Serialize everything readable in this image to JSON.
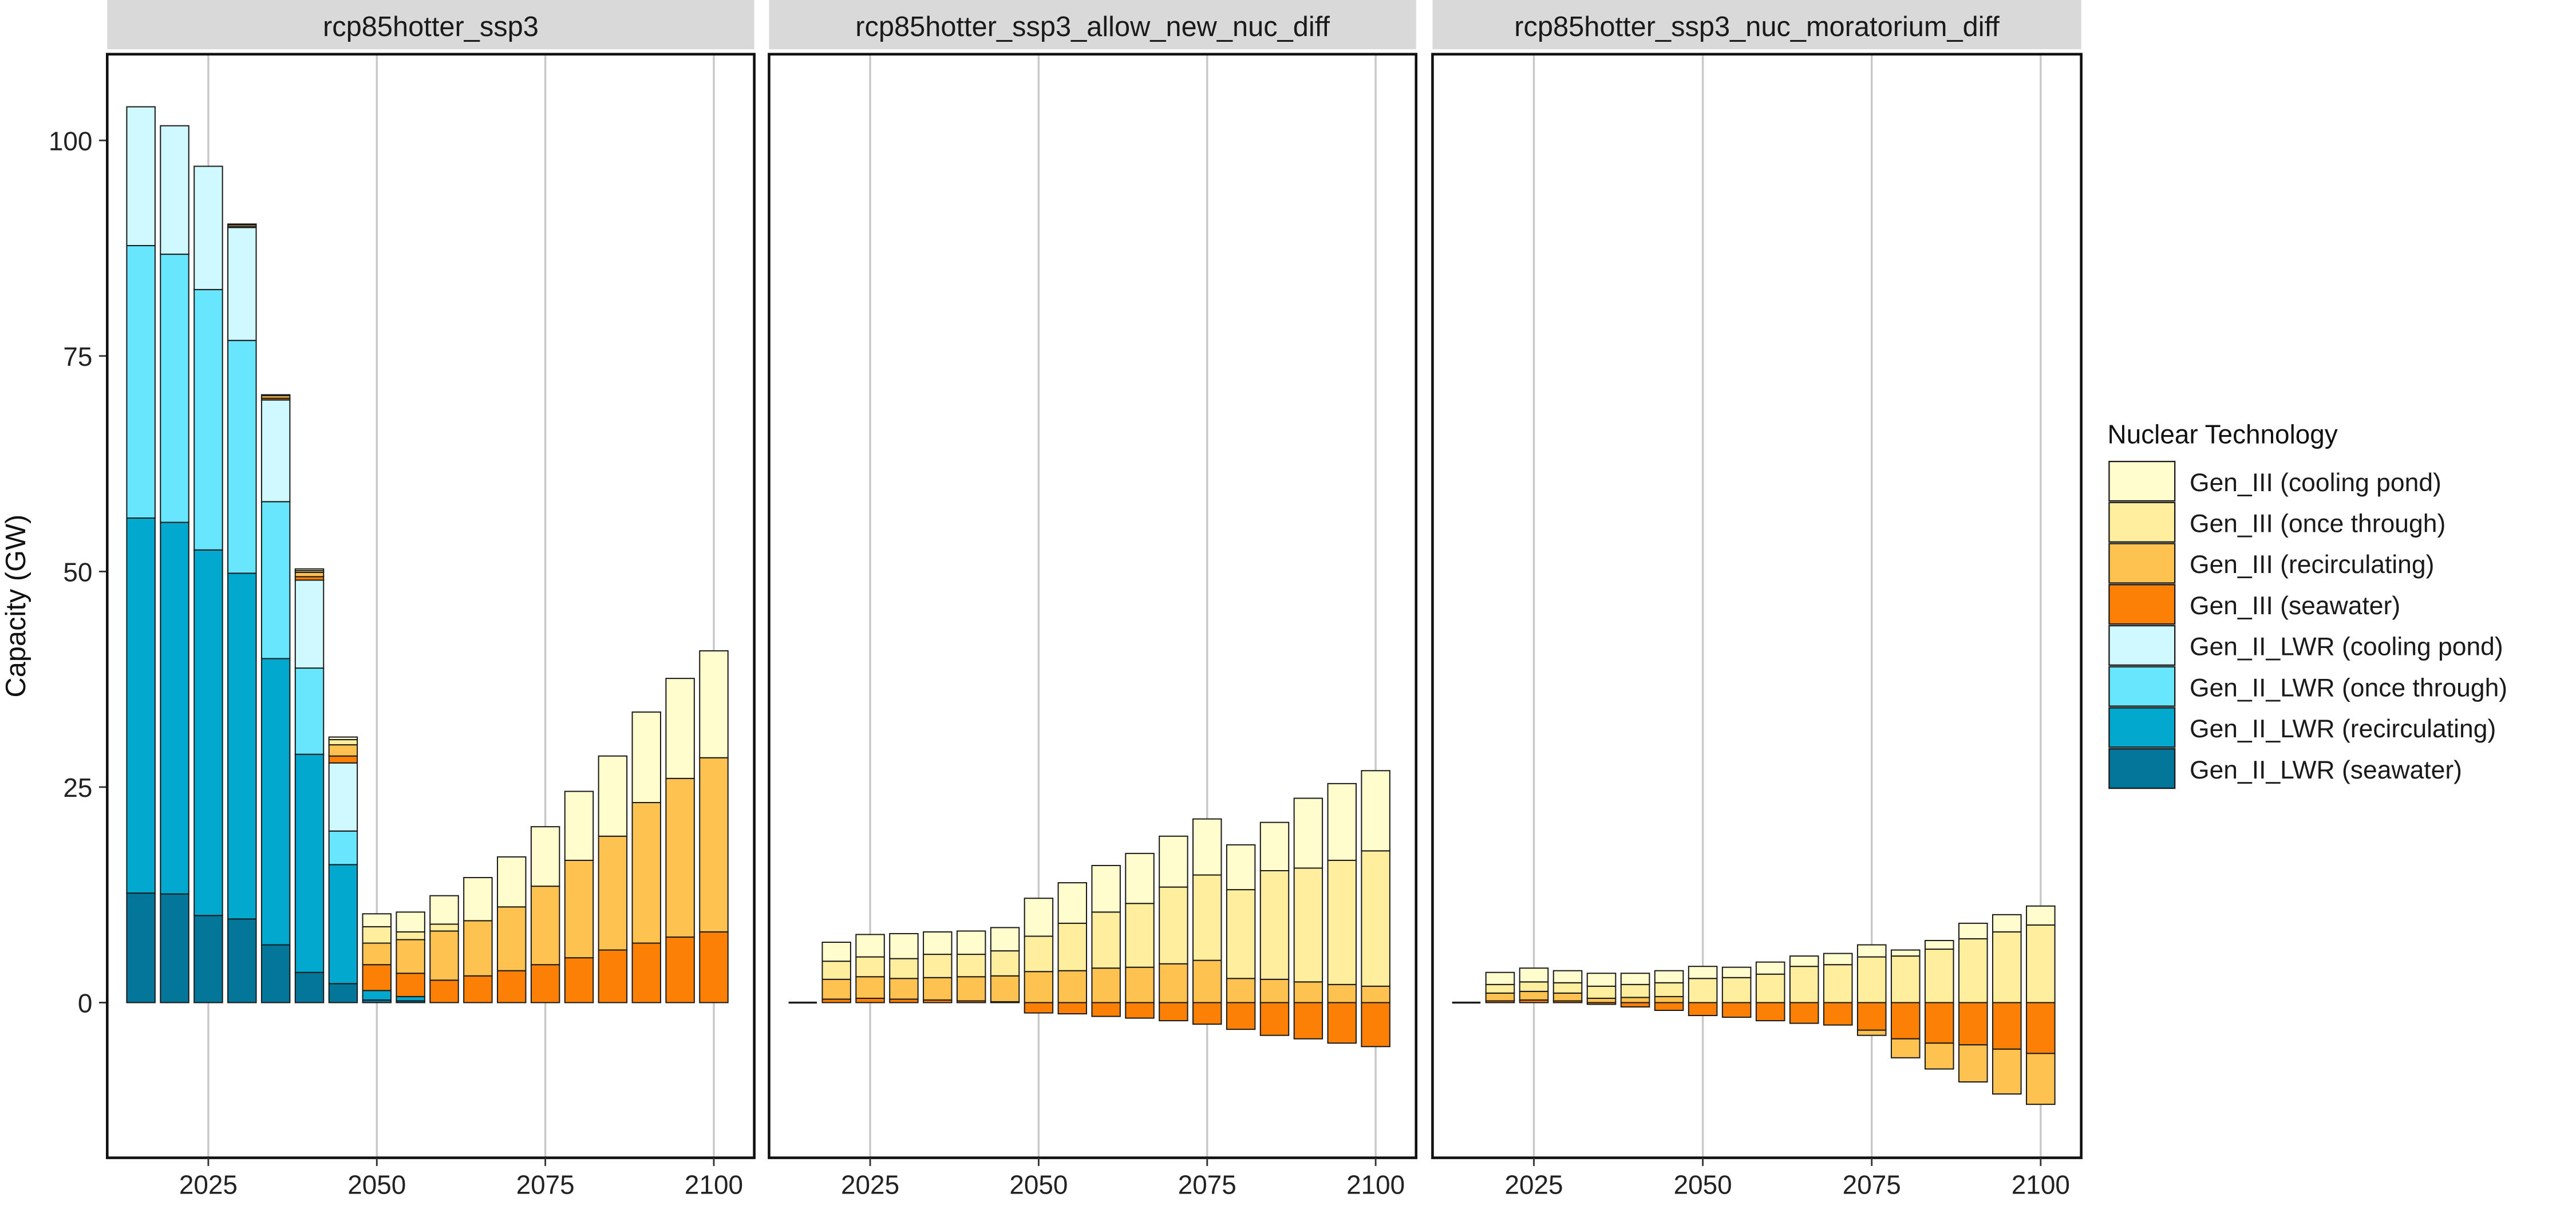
{
  "chart_data": {
    "type": "bar",
    "stacked": true,
    "faceted": true,
    "ylabel": "Capacity (GW)",
    "xlabel": "",
    "x_ticks": [
      2025,
      2050,
      2075,
      2100
    ],
    "y_ticks": [
      0,
      25,
      50,
      75,
      100
    ],
    "xlim": [
      2010,
      2106
    ],
    "ylim": [
      -18,
      110
    ],
    "grid": "vertical-major",
    "legend": {
      "title": "Nuclear Technology",
      "placement": "right",
      "entries": [
        {
          "name": "Gen_III (cooling pond)",
          "color": "#FFFCCD"
        },
        {
          "name": "Gen_III (once through)",
          "color": "#FEEE9D"
        },
        {
          "name": "Gen_III (recirculating)",
          "color": "#FDC24F"
        },
        {
          "name": "Gen_III (seawater)",
          "color": "#FC8005"
        },
        {
          "name": "Gen_II_LWR (cooling pond)",
          "color": "#CFF9FF"
        },
        {
          "name": "Gen_II_LWR (once through)",
          "color": "#68E6FD"
        },
        {
          "name": "Gen_II_LWR (recirculating)",
          "color": "#03A8CF"
        },
        {
          "name": "Gen_II_LWR (seawater)",
          "color": "#047699"
        }
      ]
    },
    "panels": [
      {
        "title": "rcp85hotter_ssp3",
        "years": [
          2015,
          2020,
          2025,
          2030,
          2035,
          2040,
          2045,
          2050,
          2055,
          2060,
          2065,
          2070,
          2075,
          2080,
          2085,
          2090,
          2095,
          2100
        ],
        "series": [
          {
            "name": "Gen_II_LWR (seawater)",
            "values": [
              12.7,
              12.6,
              10.1,
              9.7,
              6.7,
              3.5,
              2.2,
              0.3,
              0.2,
              0,
              0,
              0,
              0,
              0,
              0,
              0,
              0,
              0
            ]
          },
          {
            "name": "Gen_II_LWR (recirculating)",
            "values": [
              43.5,
              43.1,
              42.4,
              40.1,
              33.2,
              25.3,
              13.8,
              1.1,
              0.5,
              0,
              0,
              0,
              0,
              0,
              0,
              0,
              0,
              0
            ]
          },
          {
            "name": "Gen_II_LWR (once through)",
            "values": [
              31.6,
              31.1,
              30.2,
              27.0,
              18.2,
              10.0,
              3.9,
              0,
              0,
              0,
              0,
              0,
              0,
              0,
              0,
              0,
              0,
              0
            ]
          },
          {
            "name": "Gen_II_LWR (cooling pond)",
            "values": [
              16.1,
              14.9,
              14.3,
              13.1,
              11.8,
              10.2,
              7.9,
              0,
              0,
              0,
              0,
              0,
              0,
              0,
              0,
              0,
              0,
              0
            ]
          },
          {
            "name": "Gen_III (seawater)",
            "values": [
              0,
              0,
              0,
              0.1,
              0.2,
              0.4,
              0.8,
              3.0,
              2.7,
              2.6,
              3.1,
              3.7,
              4.4,
              5.2,
              6.1,
              6.9,
              7.6,
              8.2
            ]
          },
          {
            "name": "Gen_III (recirculating)",
            "values": [
              0,
              0,
              0,
              0.2,
              0.3,
              0.5,
              1.3,
              2.5,
              3.9,
              5.7,
              6.4,
              7.4,
              9.1,
              11.3,
              13.2,
              16.3,
              18.4,
              20.2
            ]
          },
          {
            "name": "Gen_III (once through)",
            "values": [
              0,
              0,
              0,
              0,
              0,
              0.2,
              0.6,
              1.9,
              0.9,
              0.8,
              0,
              0,
              0,
              0,
              0,
              0,
              0,
              0
            ]
          },
          {
            "name": "Gen_III (cooling pond)",
            "values": [
              0,
              0,
              0,
              0.1,
              0.1,
              0.2,
              0.3,
              1.5,
              2.3,
              3.3,
              5.0,
              5.8,
              6.9,
              8.0,
              9.3,
              10.5,
              11.6,
              12.4
            ]
          }
        ]
      },
      {
        "title": "rcp85hotter_ssp3_allow_new_nuc_diff",
        "years": [
          2015,
          2020,
          2025,
          2030,
          2035,
          2040,
          2045,
          2050,
          2055,
          2060,
          2065,
          2070,
          2075,
          2080,
          2085,
          2090,
          2095,
          2100
        ],
        "series": [
          {
            "name": "Gen_II_LWR (seawater)",
            "values": [
              0,
              0,
              0,
              0,
              0,
              0,
              0,
              0,
              0,
              0,
              0,
              0,
              0,
              0,
              0,
              0,
              0,
              0
            ]
          },
          {
            "name": "Gen_III (seawater)",
            "values": [
              0,
              0.4,
              0.5,
              0.4,
              0.3,
              0.2,
              0.1,
              -1.2,
              -1.3,
              -1.6,
              -1.8,
              -2.1,
              -2.5,
              -3.1,
              -3.8,
              -4.2,
              -4.7,
              -5.1
            ]
          },
          {
            "name": "Gen_III (recirculating)",
            "values": [
              0,
              2.3,
              2.5,
              2.4,
              2.6,
              2.8,
              3.0,
              3.6,
              3.7,
              4.0,
              4.1,
              4.5,
              4.9,
              2.8,
              2.7,
              2.4,
              2.1,
              1.9
            ]
          },
          {
            "name": "Gen_III (once through)",
            "values": [
              0,
              2.1,
              2.3,
              2.3,
              2.7,
              2.6,
              2.9,
              4.1,
              5.5,
              6.5,
              7.4,
              8.9,
              9.9,
              10.3,
              12.6,
              13.2,
              14.4,
              15.7
            ]
          },
          {
            "name": "Gen_III (cooling pond)",
            "values": [
              0,
              2.2,
              2.6,
              2.9,
              2.6,
              2.7,
              2.7,
              4.4,
              4.7,
              5.4,
              5.8,
              5.9,
              6.5,
              5.2,
              5.6,
              8.1,
              8.9,
              9.3
            ]
          }
        ]
      },
      {
        "title": "rcp85hotter_ssp3_nuc_moratorium_diff",
        "years": [
          2015,
          2020,
          2025,
          2030,
          2035,
          2040,
          2045,
          2050,
          2055,
          2060,
          2065,
          2070,
          2075,
          2080,
          2085,
          2090,
          2095,
          2100
        ],
        "series": [
          {
            "name": "Gen_II_LWR (seawater)",
            "values": [
              0,
              0,
              0,
              0,
              0,
              0,
              0,
              0,
              0,
              0,
              0,
              0,
              0,
              0,
              0,
              0,
              0,
              0
            ]
          },
          {
            "name": "Gen_III (seawater)",
            "values": [
              0,
              0.2,
              0.3,
              0.2,
              -0.2,
              -0.5,
              -0.9,
              -1.5,
              -1.7,
              -2.1,
              -2.4,
              -2.6,
              -3.2,
              -4.2,
              -4.7,
              -4.9,
              -5.4,
              -5.9
            ]
          },
          {
            "name": "Gen_III (recirculating)",
            "values": [
              0,
              0.9,
              1.0,
              0.9,
              0.5,
              0.6,
              0.7,
              0,
              0,
              0,
              0,
              0,
              -0.6,
              -2.2,
              -3.0,
              -4.3,
              -5.2,
              -5.9
            ]
          },
          {
            "name": "Gen_III (once through)",
            "values": [
              0,
              1.0,
              1.1,
              1.2,
              1.4,
              1.5,
              1.6,
              2.8,
              2.9,
              3.3,
              4.2,
              4.4,
              5.3,
              5.4,
              6.2,
              7.4,
              8.2,
              9.0
            ]
          },
          {
            "name": "Gen_III (cooling pond)",
            "values": [
              0,
              1.4,
              1.6,
              1.4,
              1.5,
              1.3,
              1.4,
              1.4,
              1.2,
              1.4,
              1.2,
              1.3,
              1.4,
              0.7,
              1.0,
              1.8,
              2.0,
              2.2
            ]
          }
        ]
      }
    ]
  }
}
